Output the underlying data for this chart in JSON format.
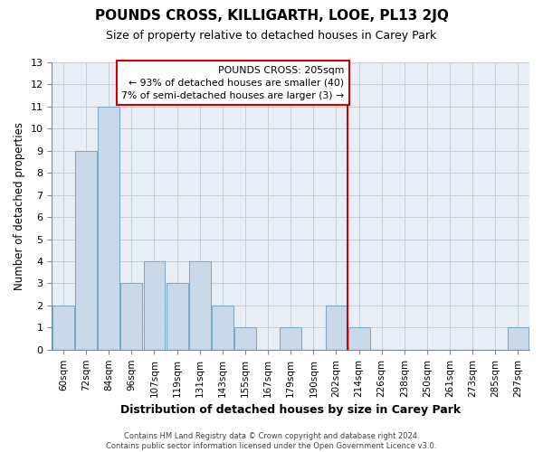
{
  "title": "POUNDS CROSS, KILLIGARTH, LOOE, PL13 2JQ",
  "subtitle": "Size of property relative to detached houses in Carey Park",
  "xlabel": "Distribution of detached houses by size in Carey Park",
  "ylabel": "Number of detached properties",
  "bin_labels": [
    "60sqm",
    "72sqm",
    "84sqm",
    "96sqm",
    "107sqm",
    "119sqm",
    "131sqm",
    "143sqm",
    "155sqm",
    "167sqm",
    "179sqm",
    "190sqm",
    "202sqm",
    "214sqm",
    "226sqm",
    "238sqm",
    "250sqm",
    "261sqm",
    "273sqm",
    "285sqm",
    "297sqm"
  ],
  "bar_heights": [
    2,
    9,
    11,
    3,
    4,
    3,
    4,
    2,
    1,
    0,
    1,
    0,
    2,
    1,
    0,
    0,
    0,
    0,
    0,
    0,
    1
  ],
  "bar_color": "#c9d9ea",
  "bar_edge_color": "#7baac8",
  "grid_color": "#cccccc",
  "plot_bg_color": "#e8eef5",
  "vline_x": 12.5,
  "vline_color": "#cc0000",
  "ann_title": "POUNDS CROSS: 205sqm",
  "ann_line1": "← 93% of detached houses are smaller (40)",
  "ann_line2": "7% of semi-detached houses are larger (3) →",
  "ylim": [
    0,
    13
  ],
  "yticks": [
    0,
    1,
    2,
    3,
    4,
    5,
    6,
    7,
    8,
    9,
    10,
    11,
    12,
    13
  ],
  "footer_line1": "Contains HM Land Registry data © Crown copyright and database right 2024.",
  "footer_line2": "Contains public sector information licensed under the Open Government Licence v3.0."
}
